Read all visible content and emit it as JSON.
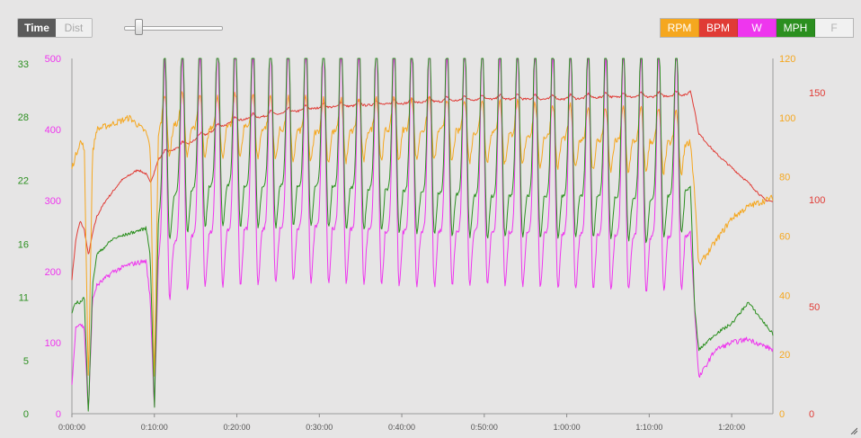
{
  "toggle": {
    "time_label": "Time",
    "dist_label": "Dist",
    "active": "time"
  },
  "zoom_slider": {
    "value": 0.12
  },
  "legend": [
    {
      "key": "rpm",
      "label": "RPM",
      "color": "#f5a71f",
      "active": true
    },
    {
      "key": "bpm",
      "label": "BPM",
      "color": "#e03b35",
      "active": true
    },
    {
      "key": "w",
      "label": "W",
      "color": "#ee36ee",
      "active": true
    },
    {
      "key": "mph",
      "label": "MPH",
      "color": "#2b8f1f",
      "active": true
    },
    {
      "key": "f",
      "label": "F",
      "color": "#f1f1f1",
      "active": false
    }
  ],
  "chart_data": {
    "type": "line",
    "x_unit": "h:mm:ss",
    "xlim": [
      "0:00:00",
      "1:25:00"
    ],
    "x_ticks": [
      "0:00:00",
      "0:10:00",
      "0:20:00",
      "0:30:00",
      "0:40:00",
      "0:50:00",
      "1:00:00",
      "1:10:00",
      "1:20:00"
    ],
    "axes": {
      "w": {
        "range": [
          0,
          500
        ],
        "ticks": [
          "0",
          "100",
          "200",
          "300",
          "400",
          "500"
        ],
        "color": "#ee36ee"
      },
      "mph": {
        "range": [
          0,
          33.5
        ],
        "ticks": [
          "0",
          "5",
          "11",
          "16",
          "22",
          "28",
          "33"
        ],
        "color": "#2b8f1f"
      },
      "rpm": {
        "range": [
          0,
          120
        ],
        "ticks": [
          "0",
          "20",
          "40",
          "60",
          "80",
          "100",
          "120"
        ],
        "color": "#f5a71f"
      },
      "bpm": {
        "range": [
          0,
          166
        ],
        "ticks": [
          "0",
          "50",
          "100",
          "150"
        ],
        "color": "#e03b35"
      }
    },
    "grid": false,
    "interval_count": 30,
    "series": [
      {
        "key": "bpm",
        "axis": "bpm",
        "color": "#e03b35",
        "x": [
          "0:00:00",
          "0:00:30",
          "0:01:00",
          "0:01:30",
          "0:02:00",
          "0:02:30",
          "0:03:00",
          "0:04:00",
          "0:06:00",
          "0:08:00",
          "0:09:00",
          "0:09:30",
          "0:10:00",
          "0:10:30",
          "0:12:00",
          "0:14:00",
          "0:16:00",
          "0:18:00",
          "0:20:00",
          "0:25:00",
          "0:30:00",
          "0:35:00",
          "0:40:00",
          "0:45:00",
          "0:50:00",
          "0:55:00",
          "1:00:00",
          "1:05:00",
          "1:10:00",
          "1:14:30",
          "1:15:00",
          "1:15:30",
          "1:16:00",
          "1:18:00",
          "1:20:00",
          "1:22:00",
          "1:24:00",
          "1:25:00"
        ],
        "y": [
          63,
          82,
          90,
          86,
          74,
          84,
          92,
          99,
          109,
          114,
          112,
          108,
          113,
          119,
          123,
          126,
          130,
          134,
          137,
          140,
          143,
          144,
          145,
          146,
          147,
          147,
          147,
          148,
          148,
          149,
          151,
          142,
          131,
          122,
          115,
          108,
          100,
          99
        ]
      },
      {
        "key": "rpm",
        "axis": "rpm",
        "color": "#f5a71f",
        "x": [
          "0:00:00",
          "0:01:00",
          "0:01:30",
          "0:02:00",
          "0:02:30",
          "0:03:00",
          "0:05:00",
          "0:07:00",
          "0:09:00",
          "0:09:30",
          "0:10:00",
          "0:10:30",
          "0:12:00",
          "0:16:00",
          "0:20:00",
          "0:30:00",
          "0:40:00",
          "0:50:00",
          "1:00:00",
          "1:05:00",
          "1:10:00",
          "1:14:30",
          "1:15:00",
          "1:15:30",
          "1:16:00",
          "1:18:00",
          "1:20:00",
          "1:22:00",
          "1:24:00",
          "1:25:00"
        ],
        "y": [
          83,
          92,
          90,
          10,
          88,
          96,
          98,
          100,
          95,
          90,
          10,
          96,
          98,
          96,
          97,
          95,
          96,
          95,
          93,
          92,
          92,
          91,
          92,
          75,
          50,
          58,
          66,
          70,
          72,
          73
        ]
      },
      {
        "key": "w",
        "axis": "w",
        "color": "#ee36ee",
        "x": [
          "0:00:00",
          "0:00:30",
          "0:01:00",
          "0:01:30",
          "0:02:00",
          "0:02:30",
          "0:03:00",
          "0:05:00",
          "0:07:00",
          "0:09:00",
          "0:09:30",
          "0:10:00",
          "0:10:30",
          "0:12:00",
          "0:16:00",
          "0:20:00",
          "0:30:00",
          "0:40:00",
          "0:50:00",
          "1:00:00",
          "1:05:00",
          "1:10:00",
          "1:14:30",
          "1:15:00",
          "1:15:30",
          "1:16:00",
          "1:18:00",
          "1:20:00",
          "1:22:00",
          "1:24:00",
          "1:25:00"
        ],
        "y": [
          40,
          125,
          127,
          120,
          0,
          160,
          180,
          200,
          210,
          215,
          160,
          5,
          222,
          240,
          255,
          258,
          262,
          256,
          255,
          252,
          250,
          248,
          250,
          255,
          150,
          50,
          90,
          100,
          105,
          95,
          90
        ]
      },
      {
        "key": "mph",
        "axis": "mph",
        "color": "#2b8f1f",
        "x": [
          "0:00:00",
          "0:00:30",
          "0:01:00",
          "0:01:30",
          "0:02:00",
          "0:02:30",
          "0:03:00",
          "0:05:00",
          "0:07:00",
          "0:09:00",
          "0:09:30",
          "0:10:00",
          "0:10:30",
          "0:12:00",
          "0:16:00",
          "0:20:00",
          "0:30:00",
          "0:40:00",
          "0:50:00",
          "1:00:00",
          "1:05:00",
          "1:10:00",
          "1:14:30",
          "1:15:00",
          "1:15:30",
          "1:16:00",
          "1:18:00",
          "1:20:00",
          "1:22:00",
          "1:24:00",
          "1:25:00"
        ],
        "y": [
          9.5,
          10.5,
          10.5,
          11,
          0,
          12,
          15,
          16.5,
          17,
          17.5,
          15,
          0.3,
          18.5,
          20.5,
          21.5,
          21.5,
          21.5,
          21,
          20.5,
          20.5,
          20.5,
          20,
          21,
          21.5,
          10,
          6,
          7.5,
          8.5,
          10.5,
          8.5,
          7.5
        ]
      }
    ]
  }
}
